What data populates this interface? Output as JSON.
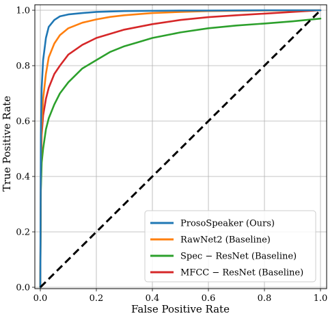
{
  "chart_data": {
    "type": "line",
    "title": "",
    "xlabel": "False Positive Rate",
    "ylabel": "True Positive Rate",
    "xlim": [
      0,
      1
    ],
    "ylim": [
      0,
      1
    ],
    "xticks": [
      "0.0",
      "0.2",
      "0.4",
      "0.6",
      "0.8",
      "1.0"
    ],
    "yticks": [
      "0.0",
      "0.2",
      "0.4",
      "0.6",
      "0.8",
      "1.0"
    ],
    "grid": true,
    "legend_position": "bottom-right",
    "series": [
      {
        "name": "ProsoSpeaker (Ours)",
        "color": "#1f77b4",
        "x": [
          0,
          0.002,
          0.005,
          0.01,
          0.02,
          0.03,
          0.05,
          0.07,
          0.1,
          0.15,
          0.2,
          0.3,
          0.4,
          0.5,
          0.6,
          0.8,
          1.0
        ],
        "y": [
          0,
          0.55,
          0.72,
          0.82,
          0.9,
          0.94,
          0.965,
          0.978,
          0.985,
          0.99,
          0.994,
          0.997,
          0.998,
          0.999,
          0.999,
          1.0,
          1.0
        ]
      },
      {
        "name": "RawNet2 (Baseline)",
        "color": "#ff7f0e",
        "x": [
          0,
          0.002,
          0.005,
          0.01,
          0.02,
          0.03,
          0.05,
          0.07,
          0.1,
          0.15,
          0.2,
          0.25,
          0.3,
          0.4,
          0.5,
          0.6,
          0.8,
          1.0
        ],
        "y": [
          0,
          0.45,
          0.58,
          0.68,
          0.77,
          0.83,
          0.88,
          0.91,
          0.935,
          0.955,
          0.967,
          0.976,
          0.982,
          0.99,
          0.994,
          0.997,
          0.999,
          1.0
        ]
      },
      {
        "name": "Spec − ResNet (Baseline)",
        "color": "#2ca02c",
        "x": [
          0,
          0.002,
          0.005,
          0.01,
          0.02,
          0.03,
          0.05,
          0.07,
          0.1,
          0.15,
          0.2,
          0.25,
          0.3,
          0.35,
          0.4,
          0.5,
          0.6,
          0.7,
          0.8,
          0.9,
          1.0
        ],
        "y": [
          0,
          0.35,
          0.45,
          0.5,
          0.57,
          0.61,
          0.66,
          0.7,
          0.74,
          0.79,
          0.82,
          0.85,
          0.87,
          0.885,
          0.9,
          0.92,
          0.935,
          0.945,
          0.952,
          0.96,
          0.97
        ]
      },
      {
        "name": "MFCC − ResNet (Baseline)",
        "color": "#d62728",
        "x": [
          0,
          0.002,
          0.005,
          0.01,
          0.02,
          0.03,
          0.05,
          0.07,
          0.1,
          0.15,
          0.2,
          0.25,
          0.3,
          0.4,
          0.5,
          0.6,
          0.7,
          0.8,
          0.9,
          1.0
        ],
        "y": [
          0,
          0.4,
          0.55,
          0.62,
          0.68,
          0.72,
          0.77,
          0.8,
          0.84,
          0.875,
          0.9,
          0.915,
          0.93,
          0.95,
          0.965,
          0.975,
          0.982,
          0.988,
          0.994,
          1.0
        ]
      },
      {
        "name": "",
        "color": "#000000",
        "dashed": true,
        "x": [
          0,
          1
        ],
        "y": [
          0,
          1
        ]
      }
    ]
  }
}
